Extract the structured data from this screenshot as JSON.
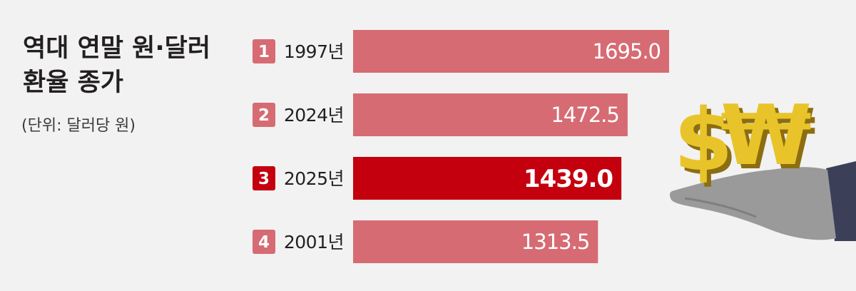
{
  "title_lines": [
    "역대 연말 원·달러",
    "환율 종가"
  ],
  "subtitle": "(단위: 달러당 원)",
  "colors": {
    "bar": "#d66b73",
    "highlight": "#c4000f",
    "rank_badge": "#d66b73",
    "rank_badge_highlight": "#c4000f",
    "background": "#f2f2f2",
    "text": "#231f20"
  },
  "illustration": {
    "icons": [
      "dollar-sign-icon",
      "won-sign-icon",
      "hand-icon"
    ]
  },
  "chart_data": {
    "type": "bar",
    "orientation": "horizontal",
    "ranks": [
      "1",
      "2",
      "3",
      "4"
    ],
    "categories": [
      "1997년",
      "2024년",
      "2025년",
      "2001년"
    ],
    "values": [
      1695.0,
      1472.5,
      1439.0,
      1313.5
    ],
    "value_labels": [
      "1695.0",
      "1472.5",
      "1439.0",
      "1313.5"
    ],
    "highlight_index": 2,
    "xlim": [
      0,
      1695.0
    ],
    "grid": false,
    "legend": "none"
  }
}
